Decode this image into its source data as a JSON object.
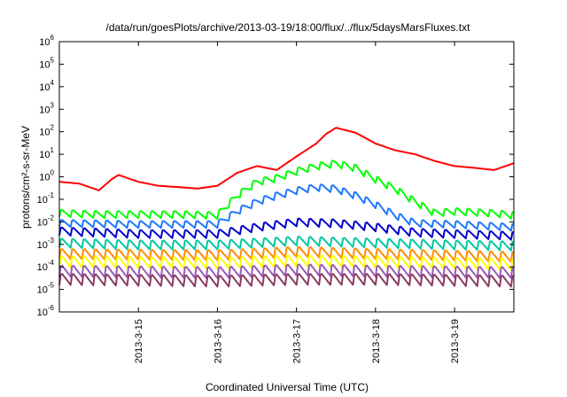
{
  "chart_data": {
    "type": "line",
    "title": "/data/run/goesPlots/archive/2013-03-19/18:00/flux/../flux/5daysMarsFluxes.txt",
    "xlabel": "Coordinated Universal Time (UTC)",
    "ylabel": "protons/cm²-s-sr-MeV",
    "yscale": "log",
    "ylim": [
      1e-06,
      1000000.0
    ],
    "yticks": [
      {
        "value": 1e-06,
        "exp": "-6"
      },
      {
        "value": 1e-05,
        "exp": "-5"
      },
      {
        "value": 0.0001,
        "exp": "-4"
      },
      {
        "value": 0.001,
        "exp": "-3"
      },
      {
        "value": 0.01,
        "exp": "-2"
      },
      {
        "value": 0.1,
        "exp": "-1"
      },
      {
        "value": 1,
        "exp": "0"
      },
      {
        "value": 10,
        "exp": "1"
      },
      {
        "value": 100,
        "exp": "2"
      },
      {
        "value": 1000,
        "exp": "3"
      },
      {
        "value": 10000,
        "exp": "4"
      },
      {
        "value": 100000,
        "exp": "5"
      },
      {
        "value": 1000000,
        "exp": "6"
      }
    ],
    "tick_base": "10",
    "xlim": [
      "2013-03-14 00:00",
      "2013-03-19 18:00"
    ],
    "xticks": [
      "2013-3-15",
      "2013-3-16",
      "2013-3-17",
      "2013-3-18",
      "2013-3-19"
    ],
    "grid": false,
    "legend": "none",
    "sawtooth_cycles_per_day": 7,
    "series": [
      {
        "color": "#ff0000",
        "sawtooth": 0.0,
        "points": [
          [
            "2013-03-14 00:00",
            0.6
          ],
          [
            "2013-03-14 06:00",
            0.5
          ],
          [
            "2013-03-14 12:00",
            0.25
          ],
          [
            "2013-03-14 16:00",
            0.8
          ],
          [
            "2013-03-14 18:00",
            1.2
          ],
          [
            "2013-03-15 00:00",
            0.6
          ],
          [
            "2013-03-15 06:00",
            0.4
          ],
          [
            "2013-03-15 12:00",
            0.35
          ],
          [
            "2013-03-15 18:00",
            0.3
          ],
          [
            "2013-03-16 00:00",
            0.4
          ],
          [
            "2013-03-16 06:00",
            1.5
          ],
          [
            "2013-03-16 12:00",
            3
          ],
          [
            "2013-03-16 18:00",
            2
          ],
          [
            "2013-03-17 00:00",
            8
          ],
          [
            "2013-03-17 06:00",
            30
          ],
          [
            "2013-03-17 09:00",
            80
          ],
          [
            "2013-03-17 12:00",
            150
          ],
          [
            "2013-03-17 18:00",
            90
          ],
          [
            "2013-03-18 00:00",
            30
          ],
          [
            "2013-03-18 06:00",
            15
          ],
          [
            "2013-03-18 12:00",
            10
          ],
          [
            "2013-03-18 18:00",
            5
          ],
          [
            "2013-03-19 00:00",
            3
          ],
          [
            "2013-03-19 06:00",
            2.5
          ],
          [
            "2013-03-19 12:00",
            2
          ],
          [
            "2013-03-19 18:00",
            4
          ]
        ]
      },
      {
        "color": "#00ff00",
        "sawtooth": 0.35,
        "points": [
          [
            "2013-03-14 00:00",
            0.025
          ],
          [
            "2013-03-14 12:00",
            0.022
          ],
          [
            "2013-03-15 00:00",
            0.022
          ],
          [
            "2013-03-15 12:00",
            0.022
          ],
          [
            "2013-03-16 00:00",
            0.02
          ],
          [
            "2013-03-16 06:00",
            0.15
          ],
          [
            "2013-03-16 12:00",
            0.6
          ],
          [
            "2013-03-16 18:00",
            0.9
          ],
          [
            "2013-03-17 00:00",
            1.8
          ],
          [
            "2013-03-17 06:00",
            3
          ],
          [
            "2013-03-17 12:00",
            4
          ],
          [
            "2013-03-17 18:00",
            2.5
          ],
          [
            "2013-03-18 00:00",
            0.8
          ],
          [
            "2013-03-18 06:00",
            0.3
          ],
          [
            "2013-03-18 12:00",
            0.08
          ],
          [
            "2013-03-18 18:00",
            0.025
          ],
          [
            "2013-03-19 00:00",
            0.03
          ],
          [
            "2013-03-19 12:00",
            0.025
          ],
          [
            "2013-03-19 18:00",
            0.02
          ]
        ]
      },
      {
        "color": "#1e78ff",
        "sawtooth": 0.35,
        "points": [
          [
            "2013-03-14 00:00",
            0.009
          ],
          [
            "2013-03-15 00:00",
            0.008
          ],
          [
            "2013-03-16 00:00",
            0.008
          ],
          [
            "2013-03-16 06:00",
            0.03
          ],
          [
            "2013-03-16 12:00",
            0.08
          ],
          [
            "2013-03-16 18:00",
            0.15
          ],
          [
            "2013-03-17 00:00",
            0.25
          ],
          [
            "2013-03-17 06:00",
            0.35
          ],
          [
            "2013-03-17 12:00",
            0.3
          ],
          [
            "2013-03-17 18:00",
            0.15
          ],
          [
            "2013-03-18 00:00",
            0.06
          ],
          [
            "2013-03-18 06:00",
            0.02
          ],
          [
            "2013-03-18 12:00",
            0.009
          ],
          [
            "2013-03-19 00:00",
            0.008
          ],
          [
            "2013-03-19 18:00",
            0.006
          ]
        ]
      },
      {
        "color": "#0000cc",
        "sawtooth": 0.4,
        "points": [
          [
            "2013-03-14 00:00",
            0.004
          ],
          [
            "2013-03-15 00:00",
            0.003
          ],
          [
            "2013-03-16 00:00",
            0.003
          ],
          [
            "2013-03-16 12:00",
            0.006
          ],
          [
            "2013-03-17 00:00",
            0.01
          ],
          [
            "2013-03-17 12:00",
            0.009
          ],
          [
            "2013-03-18 00:00",
            0.006
          ],
          [
            "2013-03-18 12:00",
            0.0035
          ],
          [
            "2013-03-19 00:00",
            0.003
          ],
          [
            "2013-03-19 18:00",
            0.0025
          ]
        ]
      },
      {
        "color": "#00c8a0",
        "sawtooth": 0.45,
        "points": [
          [
            "2013-03-14 00:00",
            0.0012
          ],
          [
            "2013-03-15 00:00",
            0.001
          ],
          [
            "2013-03-16 00:00",
            0.001
          ],
          [
            "2013-03-17 00:00",
            0.0015
          ],
          [
            "2013-03-18 00:00",
            0.0012
          ],
          [
            "2013-03-19 00:00",
            0.001
          ],
          [
            "2013-03-19 18:00",
            0.0009
          ]
        ]
      },
      {
        "color": "#ff8c00",
        "sawtooth": 0.5,
        "points": [
          [
            "2013-03-14 00:00",
            0.0004
          ],
          [
            "2013-03-16 00:00",
            0.00035
          ],
          [
            "2013-03-17 00:00",
            0.0005
          ],
          [
            "2013-03-18 00:00",
            0.0004
          ],
          [
            "2013-03-19 18:00",
            0.0003
          ]
        ]
      },
      {
        "color": "#ffff00",
        "sawtooth": 0.55,
        "points": [
          [
            "2013-03-14 00:00",
            0.00018
          ],
          [
            "2013-03-16 00:00",
            0.00016
          ],
          [
            "2013-03-17 00:00",
            0.0002
          ],
          [
            "2013-03-18 00:00",
            0.00018
          ],
          [
            "2013-03-19 18:00",
            0.00014
          ]
        ]
      },
      {
        "color": "#9b59b6",
        "sawtooth": 0.55,
        "points": [
          [
            "2013-03-14 00:00",
            7e-05
          ],
          [
            "2013-03-16 00:00",
            6e-05
          ],
          [
            "2013-03-17 00:00",
            8e-05
          ],
          [
            "2013-03-18 00:00",
            7e-05
          ],
          [
            "2013-03-19 18:00",
            6e-05
          ]
        ]
      },
      {
        "color": "#8b3a62",
        "sawtooth": 0.55,
        "points": [
          [
            "2013-03-14 00:00",
            3e-05
          ],
          [
            "2013-03-16 00:00",
            2.5e-05
          ],
          [
            "2013-03-17 00:00",
            3e-05
          ],
          [
            "2013-03-18 00:00",
            3e-05
          ],
          [
            "2013-03-19 18:00",
            2.5e-05
          ]
        ]
      }
    ]
  }
}
